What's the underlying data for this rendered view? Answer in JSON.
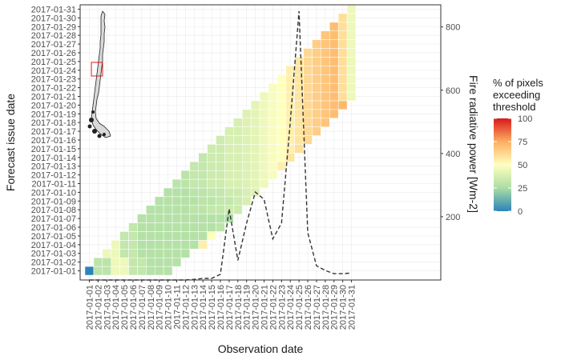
{
  "chart_data": {
    "type": "heatmap",
    "x_label": "Observation date",
    "y_label": "Forecast issue date",
    "y2_label": "Fire radiative power [Wm-2]",
    "dates": [
      "2017-01-01",
      "2017-01-02",
      "2017-01-03",
      "2017-01-04",
      "2017-01-05",
      "2017-01-06",
      "2017-01-07",
      "2017-01-08",
      "2017-01-09",
      "2017-01-10",
      "2017-01-11",
      "2017-01-12",
      "2017-01-13",
      "2017-01-14",
      "2017-01-15",
      "2017-01-16",
      "2017-01-17",
      "2017-01-18",
      "2017-01-19",
      "2017-01-20",
      "2017-01-21",
      "2017-01-22",
      "2017-01-23",
      "2017-01-24",
      "2017-01-25",
      "2017-01-26",
      "2017-01-27",
      "2017-01-28",
      "2017-01-29",
      "2017-01-30",
      "2017-01-31"
    ],
    "y2_ticks": [
      200,
      400,
      600,
      800
    ],
    "y2_range": [
      0,
      870
    ],
    "legend": {
      "title": [
        "% of pixels",
        "exceeding",
        "threshold"
      ],
      "ticks": [
        0,
        25,
        50,
        75,
        100
      ],
      "range": [
        0,
        100
      ]
    },
    "colors": {
      "scale": [
        "#2b83ba",
        "#abdda4",
        "#ffffbf",
        "#fdae61",
        "#d7191c"
      ],
      "grid": "#ebebeb",
      "line": "#333333",
      "panel_border": "#333333",
      "map_fill": "#d9d9d9",
      "map_stroke": "#222222",
      "map_box": "#e31a1c"
    },
    "cell_values": [
      [
        0,
        30,
        30,
        45,
        45,
        32,
        32,
        28,
        28,
        28
      ],
      [
        30,
        30,
        45,
        45,
        32,
        32,
        28,
        28,
        28,
        28
      ],
      [
        45,
        45,
        32,
        32,
        28,
        28,
        28,
        28,
        28,
        28
      ],
      [
        45,
        32,
        32,
        28,
        28,
        28,
        28,
        28,
        28,
        28,
        55
      ],
      [
        32,
        32,
        28,
        28,
        28,
        28,
        28,
        28,
        28,
        28,
        50
      ],
      [
        32,
        28,
        28,
        28,
        28,
        28,
        28,
        28,
        28,
        28,
        30
      ],
      [
        28,
        28,
        28,
        28,
        28,
        28,
        28,
        28,
        28,
        28,
        25
      ],
      [
        28,
        28,
        28,
        28,
        28,
        30,
        30,
        32,
        32,
        35,
        35
      ],
      [
        28,
        28,
        28,
        28,
        28,
        30,
        30,
        32,
        32,
        35,
        38
      ],
      [
        28,
        28,
        28,
        30,
        30,
        32,
        32,
        35,
        35,
        38,
        40
      ],
      [
        30,
        30,
        32,
        32,
        35,
        35,
        38,
        38,
        40,
        42,
        45
      ],
      [
        30,
        32,
        32,
        35,
        35,
        38,
        38,
        40,
        42,
        45,
        48
      ],
      [
        32,
        32,
        35,
        35,
        38,
        38,
        40,
        42,
        45,
        48,
        55
      ],
      [
        32,
        35,
        35,
        38,
        38,
        40,
        42,
        45,
        48,
        50,
        58
      ],
      [
        35,
        35,
        38,
        38,
        40,
        42,
        45,
        48,
        50,
        55,
        60
      ],
      [
        35,
        38,
        38,
        40,
        42,
        45,
        48,
        50,
        55,
        58,
        62
      ],
      [
        38,
        38,
        40,
        42,
        45,
        48,
        50,
        55,
        58,
        62,
        65
      ],
      [
        38,
        40,
        42,
        45,
        48,
        50,
        55,
        58,
        62,
        65,
        68
      ],
      [
        40,
        42,
        45,
        48,
        50,
        55,
        58,
        62,
        65,
        68,
        70
      ],
      [
        42,
        45,
        48,
        50,
        55,
        58,
        62,
        65,
        68,
        70,
        72
      ],
      [
        45,
        48,
        50,
        55,
        58,
        62,
        65,
        68,
        70,
        60,
        45
      ],
      [
        48,
        50,
        55,
        58,
        62,
        65,
        68,
        70,
        60,
        45,
        40
      ],
      [
        50,
        55,
        58,
        62,
        65,
        68,
        70,
        60,
        45,
        40,
        35
      ],
      [
        55,
        58,
        62,
        65,
        68,
        70,
        60,
        45,
        40,
        35,
        30
      ],
      [
        58,
        62,
        65,
        68,
        70,
        60,
        45,
        40,
        35,
        30,
        28
      ],
      [
        62,
        65,
        68,
        70,
        60,
        45,
        40,
        35,
        30,
        28,
        26
      ],
      [
        65,
        68,
        70,
        60,
        45,
        40,
        35,
        30,
        28,
        26
      ],
      [
        68,
        70,
        60,
        45,
        40,
        35,
        30,
        28,
        26
      ],
      [
        70,
        60,
        45,
        40,
        35,
        30,
        28,
        26
      ],
      [
        60,
        45,
        40,
        35,
        30,
        28,
        26
      ],
      [
        45,
        40,
        35,
        30,
        28,
        26
      ]
    ],
    "frp_series": [
      {
        "date": "2017-01-01",
        "value": 0
      },
      {
        "date": "2017-01-02",
        "value": 0
      },
      {
        "date": "2017-01-03",
        "value": 0
      },
      {
        "date": "2017-01-04",
        "value": 0
      },
      {
        "date": "2017-01-05",
        "value": 0
      },
      {
        "date": "2017-01-06",
        "value": 0
      },
      {
        "date": "2017-01-07",
        "value": 0
      },
      {
        "date": "2017-01-08",
        "value": 0
      },
      {
        "date": "2017-01-09",
        "value": 0
      },
      {
        "date": "2017-01-10",
        "value": 0
      },
      {
        "date": "2017-01-11",
        "value": 0
      },
      {
        "date": "2017-01-12",
        "value": 0
      },
      {
        "date": "2017-01-13",
        "value": 2
      },
      {
        "date": "2017-01-14",
        "value": 5
      },
      {
        "date": "2017-01-15",
        "value": 5
      },
      {
        "date": "2017-01-16",
        "value": 18
      },
      {
        "date": "2017-01-17",
        "value": 225
      },
      {
        "date": "2017-01-18",
        "value": 62
      },
      {
        "date": "2017-01-19",
        "value": 180
      },
      {
        "date": "2017-01-20",
        "value": 278
      },
      {
        "date": "2017-01-21",
        "value": 255
      },
      {
        "date": "2017-01-22",
        "value": 130
      },
      {
        "date": "2017-01-23",
        "value": 180
      },
      {
        "date": "2017-01-24",
        "value": 500
      },
      {
        "date": "2017-01-25",
        "value": 850
      },
      {
        "date": "2017-01-26",
        "value": 150
      },
      {
        "date": "2017-01-27",
        "value": 45
      },
      {
        "date": "2017-01-28",
        "value": 30
      },
      {
        "date": "2017-01-29",
        "value": 20
      },
      {
        "date": "2017-01-30",
        "value": 20
      },
      {
        "date": "2017-01-31",
        "value": 22
      }
    ]
  }
}
